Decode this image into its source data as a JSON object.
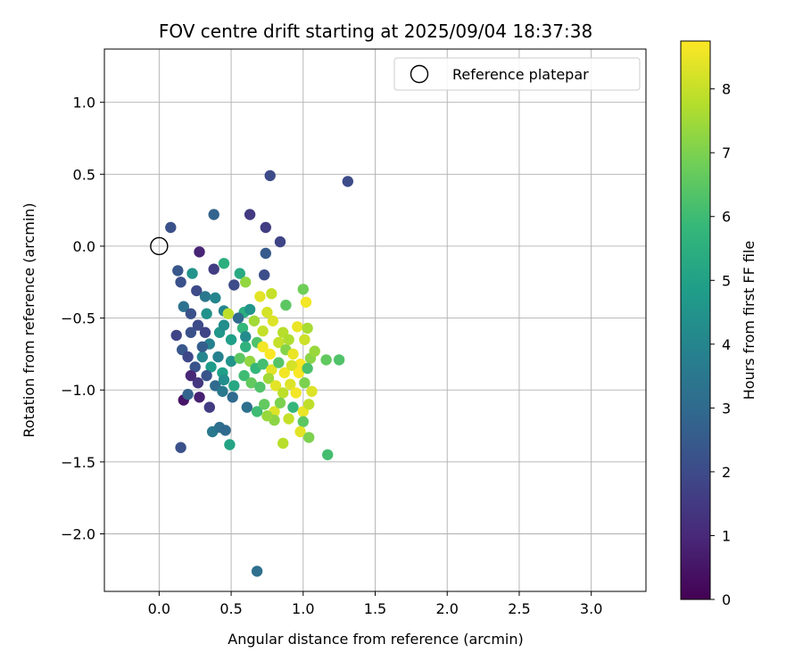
{
  "chart_data": {
    "type": "scatter",
    "title": "FOV centre drift starting at 2025/09/04 18:37:38",
    "xlabel": "Angular distance from reference (arcmin)",
    "ylabel": "Rotation from reference (arcmin)",
    "xlim": [
      -0.38,
      3.38
    ],
    "ylim": [
      -2.4,
      1.37
    ],
    "xticks": [
      0.0,
      0.5,
      1.0,
      1.5,
      2.0,
      2.5,
      3.0
    ],
    "xtick_labels": [
      "0.0",
      "0.5",
      "1.0",
      "1.5",
      "2.0",
      "2.5",
      "3.0"
    ],
    "yticks": [
      1.0,
      0.5,
      0.0,
      -0.5,
      -1.0,
      -1.5,
      -2.0
    ],
    "ytick_labels": [
      "1.0",
      "0.5",
      "0.0",
      "−0.5",
      "−1.0",
      "−1.5",
      "−2.0"
    ],
    "grid": true,
    "legend": {
      "placement": "top-right",
      "entries": [
        "Reference platepar"
      ]
    },
    "reference_point": {
      "x": 0.0,
      "y": 0.0
    },
    "colorbar": {
      "label": "Hours from first FF file",
      "range": [
        0,
        8.75
      ],
      "ticks": [
        0,
        1,
        2,
        3,
        4,
        5,
        6,
        7,
        8
      ],
      "tick_labels": [
        "0",
        "1",
        "2",
        "3",
        "4",
        "5",
        "6",
        "7",
        "8"
      ],
      "colormap": "viridis"
    },
    "points": [
      [
        0.77,
        0.49,
        2.0
      ],
      [
        1.31,
        0.45,
        2.0
      ],
      [
        0.08,
        0.13,
        2.2
      ],
      [
        0.38,
        0.22,
        2.8
      ],
      [
        0.63,
        0.22,
        1.5
      ],
      [
        0.74,
        0.13,
        1.6
      ],
      [
        0.84,
        0.03,
        1.8
      ],
      [
        0.74,
        -0.05,
        2.5
      ],
      [
        0.28,
        -0.04,
        0.9
      ],
      [
        0.13,
        -0.17,
        2.4
      ],
      [
        0.15,
        -0.25,
        2.2
      ],
      [
        0.23,
        -0.19,
        4.5
      ],
      [
        0.38,
        -0.16,
        1.6
      ],
      [
        0.45,
        -0.12,
        5.5
      ],
      [
        0.73,
        -0.2,
        2.1
      ],
      [
        0.56,
        -0.19,
        5.3
      ],
      [
        0.52,
        -0.27,
        2.0
      ],
      [
        0.6,
        -0.25,
        7.3
      ],
      [
        0.26,
        -0.31,
        2.0
      ],
      [
        0.32,
        -0.35,
        3.5
      ],
      [
        0.17,
        -0.42,
        3.3
      ],
      [
        0.22,
        -0.47,
        2.2
      ],
      [
        0.33,
        -0.47,
        4.4
      ],
      [
        0.39,
        -0.36,
        4.0
      ],
      [
        0.45,
        -0.45,
        4.0
      ],
      [
        0.48,
        -0.47,
        7.9
      ],
      [
        0.59,
        -0.46,
        5.5
      ],
      [
        0.63,
        -0.44,
        4.5
      ],
      [
        0.7,
        -0.35,
        8.4
      ],
      [
        0.78,
        -0.33,
        8.0
      ],
      [
        0.75,
        -0.46,
        8.2
      ],
      [
        0.88,
        -0.41,
        6.5
      ],
      [
        1.02,
        -0.39,
        8.6
      ],
      [
        1.0,
        -0.3,
        6.8
      ],
      [
        0.66,
        -0.52,
        7.5
      ],
      [
        0.72,
        -0.59,
        8.0
      ],
      [
        0.79,
        -0.52,
        8.3
      ],
      [
        0.86,
        -0.6,
        7.8
      ],
      [
        0.96,
        -0.56,
        8.5
      ],
      [
        1.01,
        -0.65,
        8.1
      ],
      [
        1.03,
        -0.57,
        7.6
      ],
      [
        0.12,
        -0.62,
        1.8
      ],
      [
        0.16,
        -0.72,
        2.4
      ],
      [
        0.22,
        -0.6,
        2.2
      ],
      [
        0.27,
        -0.55,
        2.0
      ],
      [
        0.32,
        -0.6,
        1.8
      ],
      [
        0.35,
        -0.68,
        3.8
      ],
      [
        0.42,
        -0.6,
        4.6
      ],
      [
        0.45,
        -0.55,
        4.3
      ],
      [
        0.5,
        -0.65,
        4.9
      ],
      [
        0.58,
        -0.57,
        5.8
      ],
      [
        0.6,
        -0.63,
        4.2
      ],
      [
        0.68,
        -0.67,
        6.3
      ],
      [
        0.72,
        -0.7,
        8.6
      ],
      [
        0.77,
        -0.75,
        8.7
      ],
      [
        0.83,
        -0.67,
        8.0
      ],
      [
        0.88,
        -0.72,
        7.1
      ],
      [
        0.93,
        -0.75,
        8.5
      ],
      [
        0.98,
        -0.82,
        8.7
      ],
      [
        1.05,
        -0.78,
        7.2
      ],
      [
        1.08,
        -0.73,
        7.4
      ],
      [
        1.16,
        -0.79,
        6.6
      ],
      [
        1.25,
        -0.79,
        6.3
      ],
      [
        0.2,
        -0.77,
        1.9
      ],
      [
        0.25,
        -0.84,
        2.3
      ],
      [
        0.3,
        -0.77,
        4.0
      ],
      [
        0.36,
        -0.84,
        4.8
      ],
      [
        0.41,
        -0.77,
        3.8
      ],
      [
        0.44,
        -0.88,
        4.9
      ],
      [
        0.5,
        -0.8,
        4.5
      ],
      [
        0.56,
        -0.78,
        6.5
      ],
      [
        0.63,
        -0.8,
        7.3
      ],
      [
        0.67,
        -0.85,
        5.8
      ],
      [
        0.72,
        -0.82,
        6.1
      ],
      [
        0.78,
        -0.86,
        8.4
      ],
      [
        0.83,
        -0.81,
        6.4
      ],
      [
        0.87,
        -0.88,
        8.6
      ],
      [
        0.92,
        -0.83,
        8.2
      ],
      [
        0.97,
        -0.88,
        8.7
      ],
      [
        1.03,
        -0.85,
        6.2
      ],
      [
        0.22,
        -0.9,
        1.0
      ],
      [
        0.27,
        -0.95,
        1.4
      ],
      [
        0.33,
        -0.9,
        2.3
      ],
      [
        0.39,
        -0.97,
        3.0
      ],
      [
        0.45,
        -0.93,
        4.3
      ],
      [
        0.52,
        -0.97,
        5.2
      ],
      [
        0.59,
        -0.9,
        6.0
      ],
      [
        0.64,
        -0.95,
        6.6
      ],
      [
        0.7,
        -0.98,
        6.3
      ],
      [
        0.76,
        -0.92,
        7.5
      ],
      [
        0.81,
        -0.97,
        8.4
      ],
      [
        0.86,
        -1.02,
        7.9
      ],
      [
        0.91,
        -0.96,
        8.3
      ],
      [
        0.95,
        -1.02,
        8.6
      ],
      [
        1.01,
        -0.95,
        7.0
      ],
      [
        1.06,
        -1.01,
        8.3
      ],
      [
        0.17,
        -1.07,
        0.5
      ],
      [
        0.2,
        -1.03,
        2.8
      ],
      [
        0.28,
        -1.05,
        0.8
      ],
      [
        0.35,
        -1.12,
        1.6
      ],
      [
        0.44,
        -1.01,
        3.5
      ],
      [
        0.51,
        -1.05,
        3.0
      ],
      [
        0.61,
        -1.12,
        3.2
      ],
      [
        0.68,
        -1.15,
        6.0
      ],
      [
        0.73,
        -1.1,
        6.6
      ],
      [
        0.8,
        -1.15,
        8.3
      ],
      [
        0.84,
        -1.09,
        7.0
      ],
      [
        0.93,
        -1.12,
        5.8
      ],
      [
        1.0,
        -1.15,
        8.5
      ],
      [
        1.04,
        -1.1,
        7.9
      ],
      [
        0.9,
        -1.2,
        8.0
      ],
      [
        1.0,
        -1.22,
        6.5
      ],
      [
        0.8,
        -1.21,
        7.2
      ],
      [
        0.75,
        -1.18,
        7.4
      ],
      [
        0.37,
        -1.29,
        3.5
      ],
      [
        0.42,
        -1.26,
        3.2
      ],
      [
        0.46,
        -1.28,
        3.0
      ],
      [
        0.49,
        -1.38,
        5.1
      ],
      [
        0.86,
        -1.37,
        7.8
      ],
      [
        0.98,
        -1.29,
        8.4
      ],
      [
        1.04,
        -1.33,
        7.0
      ],
      [
        1.17,
        -1.45,
        6.1
      ],
      [
        0.15,
        -1.4,
        2.2
      ],
      [
        0.68,
        -2.26,
        3.2
      ],
      [
        0.55,
        -0.5,
        3.0
      ],
      [
        0.3,
        -0.7,
        2.6
      ],
      [
        0.6,
        -0.7,
        5.6
      ],
      [
        0.9,
        -0.65,
        7.7
      ]
    ]
  }
}
